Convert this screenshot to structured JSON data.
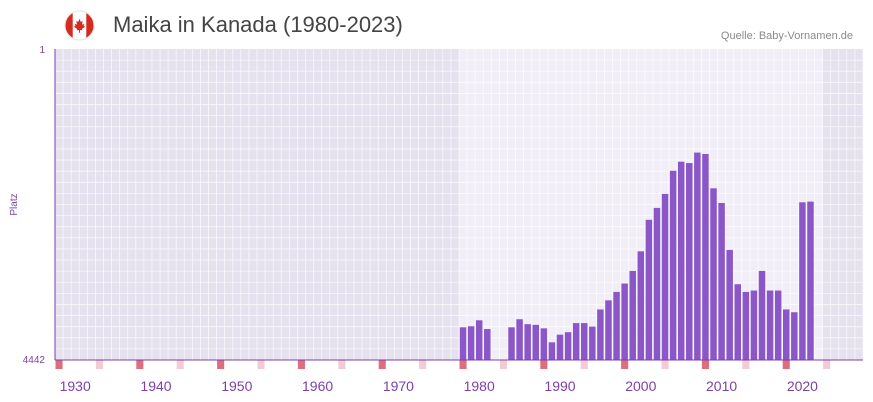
{
  "header": {
    "title": "Maika in Kanada (1980-2023)",
    "source": "Quelle: Baby-Vornamen.de"
  },
  "colors": {
    "bar": "#8b57c8",
    "axis": "#7a3fb0",
    "plot_bg_outer": "#e5e1ee",
    "plot_bg_inner": "#f1eef8",
    "grid": "#ffffff",
    "marker_strong": "#de6d7e",
    "marker_light": "#f3cbd5",
    "tick_text": "#7d3fa8"
  },
  "chart_data": {
    "type": "bar",
    "title": "Maika in Kanada (1980-2023)",
    "xlabel": "",
    "ylabel": "Platz",
    "y_axis_reversed": true,
    "ylim": [
      1,
      4442
    ],
    "y_tick_labels": [
      "1",
      "4442"
    ],
    "xlim": [
      1928,
      2028
    ],
    "x_tick_values": [
      1930,
      1940,
      1950,
      1960,
      1970,
      1980,
      1990,
      2000,
      2010,
      2020
    ],
    "x_tick_labels": [
      "1930",
      "1940",
      "1950",
      "1960",
      "1970",
      "1980",
      "1990",
      "2000",
      "2010",
      "2020"
    ],
    "data_range_shaded": [
      1978,
      2023
    ],
    "series": [
      {
        "name": "Platz",
        "x": [
          1978,
          1979,
          1980,
          1981,
          1984,
          1985,
          1986,
          1987,
          1988,
          1989,
          1990,
          1991,
          1992,
          1993,
          1994,
          1995,
          1996,
          1997,
          1998,
          1999,
          2000,
          2001,
          2002,
          2003,
          2004,
          2005,
          2006,
          2007,
          2008,
          2009,
          2010,
          2011,
          2012,
          2013,
          2014,
          2015,
          2016,
          2017,
          2018,
          2019,
          2020,
          2021
        ],
        "values": [
          3975,
          3960,
          3875,
          4000,
          3975,
          3860,
          3930,
          3940,
          3990,
          4190,
          4080,
          4045,
          3915,
          3915,
          3965,
          3720,
          3590,
          3470,
          3350,
          3170,
          2890,
          2440,
          2270,
          2070,
          1740,
          1610,
          1630,
          1480,
          1500,
          1990,
          2200,
          2870,
          3360,
          3470,
          3450,
          3170,
          3450,
          3450,
          3720,
          3760,
          2190,
          2180
        ]
      }
    ]
  }
}
